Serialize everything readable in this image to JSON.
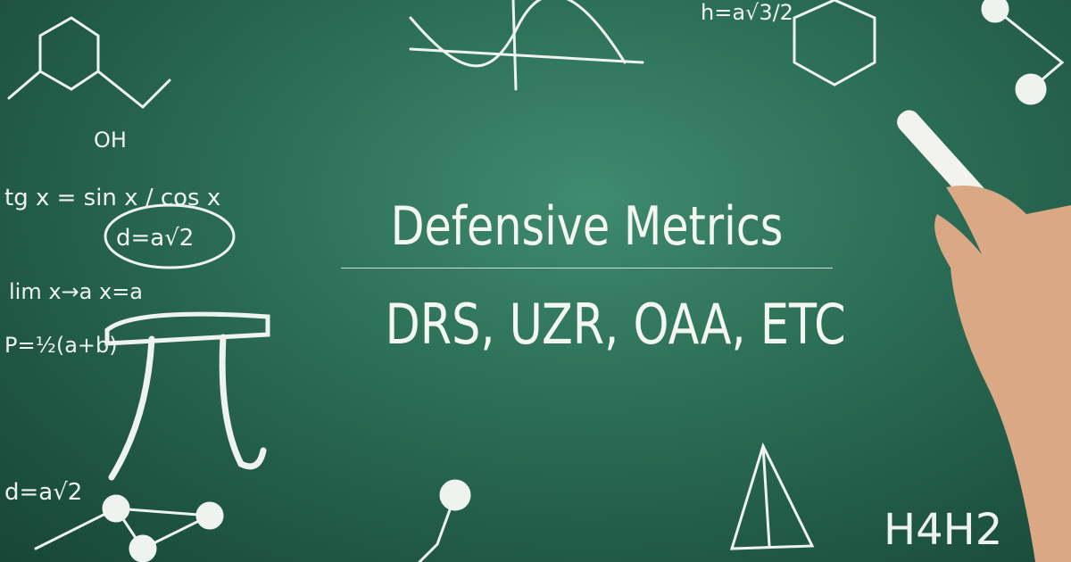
{
  "graphic": {
    "title": "Defensive Metrics",
    "subtitle": "DRS, UZR, OAA, ETC",
    "background": "chalkboard",
    "colors": {
      "board": "#2c6e57",
      "chalk": "#f4f6f2",
      "skin": "#e0b08e"
    }
  },
  "chalk_formulas": {
    "f1": "tg x = sin x / cos x",
    "f2": "d=a√2",
    "f3": "lim x→a x=a",
    "f4": "P=½(a+b)",
    "f5": "h=a√3/2",
    "f6": "H4H2",
    "f7": "OH",
    "f8": "d=a√2"
  }
}
